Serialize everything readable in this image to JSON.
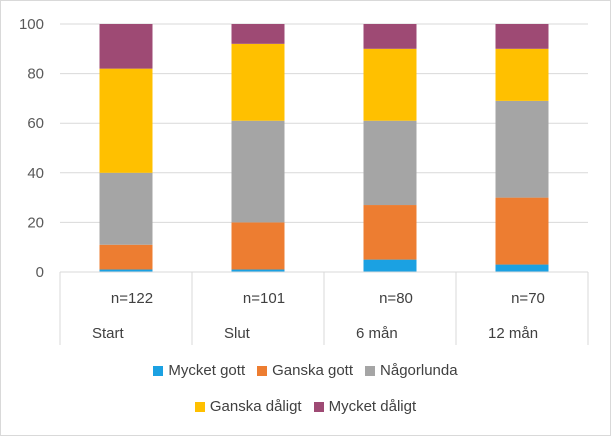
{
  "chart_data": {
    "type": "bar",
    "stacked": true,
    "title": "",
    "xlabel": "",
    "ylabel": "",
    "ylim": [
      0,
      100
    ],
    "yticks": [
      0,
      20,
      40,
      60,
      80,
      100
    ],
    "grid": true,
    "legend_position": "bottom",
    "categories": [
      "Start",
      "Slut",
      "6 mån",
      "12 mån"
    ],
    "n_labels": [
      "n=122",
      "n=101",
      "n=80",
      "n=70"
    ],
    "series": [
      {
        "name": "Mycket gott",
        "color": "#1ba1e2",
        "values": [
          1,
          1,
          5,
          3
        ]
      },
      {
        "name": "Ganska gott",
        "color": "#ed7d31",
        "values": [
          10,
          19,
          22,
          27
        ]
      },
      {
        "name": "Någorlunda",
        "color": "#a5a5a5",
        "values": [
          29,
          41,
          34,
          39
        ]
      },
      {
        "name": "Ganska dåligt",
        "color": "#ffc000",
        "values": [
          42,
          31,
          29,
          21
        ]
      },
      {
        "name": "Mycket dåligt",
        "color": "#9e4a74",
        "values": [
          18,
          8,
          10,
          10
        ]
      }
    ]
  }
}
